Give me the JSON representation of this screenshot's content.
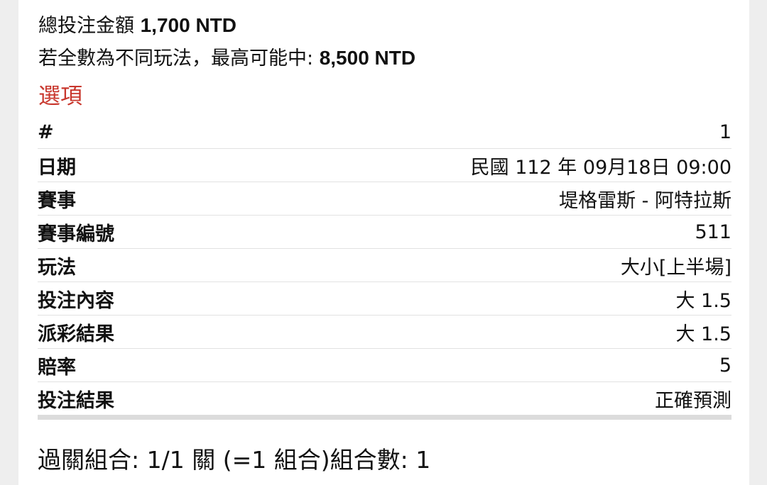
{
  "summary": {
    "total_label": "總投注金額",
    "total_value": "1,700 NTD",
    "max_label": "若全數為不同玩法，最高可能中:",
    "max_value": "8,500 NTD"
  },
  "section_title": "選項",
  "rows": [
    {
      "label": "#",
      "value": "1"
    },
    {
      "label": "日期",
      "value": "民國 112 年 09月18日 09:00"
    },
    {
      "label": "賽事",
      "value": "堤格雷斯 - 阿特拉斯"
    },
    {
      "label": "賽事編號",
      "value": "511"
    },
    {
      "label": "玩法",
      "value": "大小[上半場]"
    },
    {
      "label": "投注內容",
      "value": "大 1.5"
    },
    {
      "label": "派彩結果",
      "value": "大 1.5"
    },
    {
      "label": "賠率",
      "value": "5"
    },
    {
      "label": "投注結果",
      "value": "正確預測"
    }
  ],
  "footer": "過關組合: 1/1 關 (=1 組合)組合數: 1",
  "colors": {
    "accent": "#c8372d",
    "background": "#eeeeee"
  }
}
